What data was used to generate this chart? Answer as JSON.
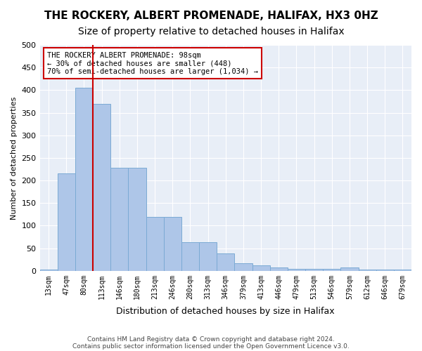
{
  "title": "THE ROCKERY, ALBERT PROMENADE, HALIFAX, HX3 0HZ",
  "subtitle": "Size of property relative to detached houses in Halifax",
  "xlabel": "Distribution of detached houses by size in Halifax",
  "ylabel": "Number of detached properties",
  "categories": [
    "13sqm",
    "47sqm",
    "80sqm",
    "113sqm",
    "146sqm",
    "180sqm",
    "213sqm",
    "246sqm",
    "280sqm",
    "313sqm",
    "346sqm",
    "379sqm",
    "413sqm",
    "446sqm",
    "479sqm",
    "513sqm",
    "546sqm",
    "579sqm",
    "612sqm",
    "646sqm",
    "679sqm"
  ],
  "values": [
    3,
    215,
    405,
    370,
    228,
    228,
    119,
    119,
    64,
    64,
    38,
    17,
    12,
    7,
    5,
    5,
    5,
    8,
    3,
    2,
    2
  ],
  "bar_color": "#aec6e8",
  "bar_edgecolor": "#7baad4",
  "vline_color": "#cc0000",
  "ylim": [
    0,
    500
  ],
  "yticks": [
    0,
    50,
    100,
    150,
    200,
    250,
    300,
    350,
    400,
    450,
    500
  ],
  "annotation_text": "THE ROCKERY ALBERT PROMENADE: 98sqm\n← 30% of detached houses are smaller (448)\n70% of semi-detached houses are larger (1,034) →",
  "annotation_box_edgecolor": "#cc0000",
  "footnote1": "Contains HM Land Registry data © Crown copyright and database right 2024.",
  "footnote2": "Contains public sector information licensed under the Open Government Licence v3.0.",
  "background_color": "#e8eef7",
  "title_fontsize": 11,
  "subtitle_fontsize": 10
}
